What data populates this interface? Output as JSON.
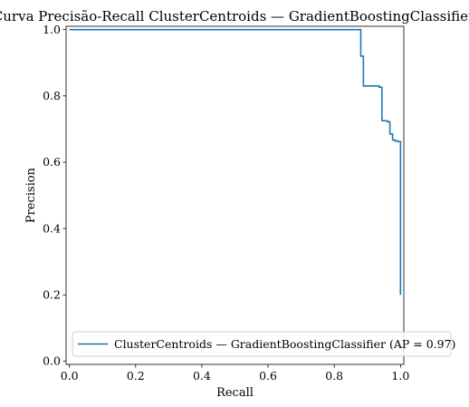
{
  "chart_data": {
    "type": "line",
    "title": "Curva Precisão-Recall ClusterCentroids — GradientBoostingClassifier",
    "xlabel": "Recall",
    "ylabel": "Precision",
    "xlim": [
      -0.01,
      1.01
    ],
    "ylim": [
      -0.01,
      1.01
    ],
    "xticks": [
      0.0,
      0.2,
      0.4,
      0.6,
      0.8,
      1.0
    ],
    "xtick_labels": [
      "0.0",
      "0.2",
      "0.4",
      "0.6",
      "0.8",
      "1.0"
    ],
    "yticks": [
      0.0,
      0.2,
      0.4,
      0.6,
      0.8,
      1.0
    ],
    "ytick_labels": [
      "0.0",
      "0.2",
      "0.4",
      "0.6",
      "0.8",
      "1.0"
    ],
    "grid": false,
    "legend_position": "lower-right",
    "series": [
      {
        "name": "ClusterCentroids — GradientBoostingClassifier (AP = 0.97)",
        "color": "#1f77b4",
        "drawstyle": "steps-post",
        "recall": [
          1.0,
          1.0,
          0.992,
          0.984,
          0.976,
          0.968,
          0.96,
          0.944,
          0.936,
          0.888,
          0.88,
          0.0
        ],
        "precision": [
          0.2,
          0.66,
          0.662,
          0.664,
          0.667,
          0.685,
          0.722,
          0.725,
          0.826,
          0.83,
          0.92,
          1.0
        ]
      }
    ]
  }
}
